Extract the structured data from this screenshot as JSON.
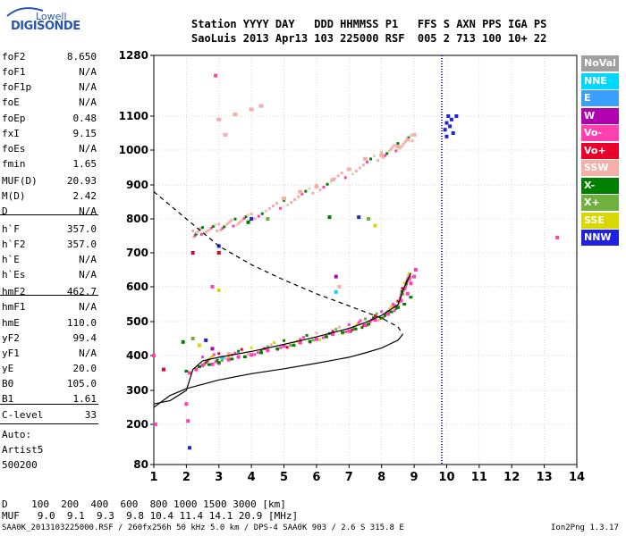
{
  "logo": {
    "top": "Lowell",
    "main": "DIGISONDE"
  },
  "header": {
    "line1": "Station YYYY DAY   DDD HHMMSS P1   FFS S AXN PPS IGA PS",
    "line2": "SaoLuis 2013 Apr13 103 225000 RSF  005 2 713 100 10+ 22"
  },
  "params": [
    {
      "k": "foF2",
      "v": "8.650"
    },
    {
      "k": "foF1",
      "v": "N/A"
    },
    {
      "k": "foF1p",
      "v": "N/A"
    },
    {
      "k": "foE",
      "v": "N/A"
    },
    {
      "k": "foEp",
      "v": "0.48"
    },
    {
      "k": "fxI",
      "v": "9.15"
    },
    {
      "k": "foEs",
      "v": "N/A"
    },
    {
      "k": "fmin",
      "v": "1.65"
    },
    {
      "k": "MUF(D)",
      "v": "20.93"
    },
    {
      "k": "M(D)",
      "v": "2.42"
    },
    {
      "k": "D",
      "v": "N/A"
    },
    {
      "k": "h`F",
      "v": "357.0"
    },
    {
      "k": "h`F2",
      "v": "357.0"
    },
    {
      "k": "h`E",
      "v": "N/A"
    },
    {
      "k": "h`Es",
      "v": "N/A"
    },
    {
      "k": "hmF2",
      "v": "462.7"
    },
    {
      "k": "hmF1",
      "v": "N/A"
    },
    {
      "k": "hmE",
      "v": "110.0"
    },
    {
      "k": "yF2",
      "v": "99.4"
    },
    {
      "k": "yF1",
      "v": "N/A"
    },
    {
      "k": "yE",
      "v": "20.0"
    },
    {
      "k": "B0",
      "v": "105.0"
    },
    {
      "k": "B1",
      "v": "1.61"
    },
    {
      "k": "C-level",
      "v": "33"
    }
  ],
  "auto": {
    "label": "Auto:",
    "artist": "Artist5",
    "code": "500200"
  },
  "legend": [
    {
      "label": "NoVal",
      "color": "#a0a0a0"
    },
    {
      "label": "NNE",
      "color": "#00d8ff"
    },
    {
      "label": "E",
      "color": "#3aa0ff"
    },
    {
      "label": "W",
      "color": "#b000b0"
    },
    {
      "label": "Vo-",
      "color": "#ff40b0"
    },
    {
      "label": "Vo+",
      "color": "#e8002a"
    },
    {
      "label": "SSW",
      "color": "#f4b0a8"
    },
    {
      "label": "X-",
      "color": "#008000"
    },
    {
      "label": "X+",
      "color": "#70b040"
    },
    {
      "label": "SSE",
      "color": "#d8d800"
    },
    {
      "label": "NNW",
      "color": "#2020e0"
    }
  ],
  "bottom": {
    "d_line": "D    100  200  400  600  800 1000 1500 3000 [km]",
    "muf_line": "MUF   9.0  9.1  9.3  9.8 10.4 11.4 14.1 20.9 [MHz]"
  },
  "footer": {
    "left": "SAA0K_2013103225000.RSF / 260fx256h 50 kHz 5.0 km / DPS-4 SAA0K 903 / 2.6 S 315.8 E",
    "right": "Ion2Png 1.3.17"
  },
  "chart_data": {
    "type": "scatter",
    "xlim": [
      1,
      14
    ],
    "ylim": [
      80,
      1280
    ],
    "x_ticks": [
      1,
      2,
      3,
      4,
      5,
      6,
      7,
      8,
      9,
      10,
      11,
      12,
      13,
      14
    ],
    "y_ticks": [
      80,
      200,
      300,
      400,
      500,
      600,
      700,
      800,
      900,
      1000,
      1100,
      1280
    ],
    "marker_freq_mhz": 9.85,
    "profile_curve": [
      [
        1.0,
        250
      ],
      [
        1.5,
        285
      ],
      [
        2.0,
        305
      ],
      [
        3.0,
        330
      ],
      [
        4.0,
        348
      ],
      [
        5.0,
        362
      ],
      [
        6.0,
        378
      ],
      [
        7.0,
        395
      ],
      [
        7.5,
        408
      ],
      [
        8.0,
        422
      ],
      [
        8.5,
        445
      ],
      [
        8.65,
        462
      ]
    ],
    "muf_curve": [
      [
        1.0,
        880
      ],
      [
        1.5,
        840
      ],
      [
        2.0,
        800
      ],
      [
        2.5,
        760
      ],
      [
        3.0,
        720
      ],
      [
        4.0,
        665
      ],
      [
        5.0,
        620
      ],
      [
        6.0,
        580
      ],
      [
        7.0,
        545
      ],
      [
        8.0,
        510
      ],
      [
        8.5,
        485
      ],
      [
        8.65,
        462
      ]
    ],
    "ordinary_trace": [
      [
        1.0,
        260
      ],
      [
        1.5,
        270
      ],
      [
        2.0,
        300
      ],
      [
        2.2,
        360
      ],
      [
        2.5,
        385
      ],
      [
        3.0,
        395
      ],
      [
        4.0,
        412
      ],
      [
        5.0,
        433
      ],
      [
        6.0,
        455
      ],
      [
        7.0,
        480
      ],
      [
        7.5,
        497
      ],
      [
        8.0,
        518
      ],
      [
        8.5,
        548
      ],
      [
        8.7,
        600
      ],
      [
        8.9,
        640
      ]
    ],
    "oblique_trace": [
      [
        2.2,
        755
      ],
      [
        2.5,
        765
      ],
      [
        3.0,
        775
      ],
      [
        3.5,
        790
      ],
      [
        4.0,
        805
      ],
      [
        5.0,
        845
      ],
      [
        6.0,
        890
      ],
      [
        7.0,
        935
      ],
      [
        8.0,
        985
      ],
      [
        8.5,
        1010
      ],
      [
        9.0,
        1040
      ]
    ],
    "o_echoes": [
      [
        1.0,
        400
      ],
      [
        1.05,
        200
      ],
      [
        2.0,
        260
      ],
      [
        2.05,
        210
      ],
      [
        2.1,
        350
      ],
      [
        2.3,
        360
      ],
      [
        2.5,
        372
      ],
      [
        2.8,
        375
      ],
      [
        3.0,
        378
      ],
      [
        3.3,
        388
      ],
      [
        3.6,
        396
      ],
      [
        4.0,
        402
      ],
      [
        4.5,
        415
      ],
      [
        5.0,
        428
      ],
      [
        5.5,
        438
      ],
      [
        6.0,
        448
      ],
      [
        6.5,
        463
      ],
      [
        7.0,
        472
      ],
      [
        7.5,
        489
      ],
      [
        7.8,
        505
      ],
      [
        8.2,
        522
      ],
      [
        8.4,
        545
      ],
      [
        8.6,
        560
      ],
      [
        8.8,
        580
      ],
      [
        8.9,
        610
      ],
      [
        9.0,
        630
      ],
      [
        9.05,
        650
      ]
    ],
    "x_echoes": [
      [
        2.0,
        355
      ],
      [
        2.4,
        368
      ],
      [
        2.7,
        374
      ],
      [
        3.0,
        380
      ],
      [
        3.4,
        390
      ],
      [
        3.8,
        396
      ],
      [
        4.3,
        408
      ],
      [
        4.8,
        420
      ],
      [
        5.3,
        430
      ],
      [
        5.8,
        442
      ],
      [
        6.3,
        455
      ],
      [
        6.8,
        468
      ],
      [
        7.2,
        478
      ],
      [
        7.6,
        492
      ],
      [
        8.0,
        510
      ],
      [
        8.3,
        528
      ],
      [
        8.5,
        540
      ],
      [
        8.7,
        550
      ],
      [
        8.9,
        570
      ]
    ],
    "ssw_echoes": [
      [
        3.0,
        1090
      ],
      [
        3.5,
        1105
      ],
      [
        4.0,
        1120
      ],
      [
        4.3,
        1130
      ],
      [
        5.0,
        860
      ],
      [
        5.5,
        880
      ],
      [
        6.0,
        895
      ],
      [
        6.5,
        915
      ],
      [
        7.0,
        945
      ],
      [
        7.5,
        975
      ],
      [
        8.0,
        985
      ],
      [
        8.5,
        1010
      ],
      [
        8.8,
        1030
      ],
      [
        9.0,
        1045
      ],
      [
        3.2,
        1045
      ]
    ],
    "nnw_echoes": [
      [
        9.95,
        1060
      ],
      [
        10.0,
        1080
      ],
      [
        10.05,
        1100
      ],
      [
        10.1,
        1070
      ],
      [
        10.15,
        1090
      ],
      [
        10.2,
        1050
      ],
      [
        10.3,
        1100
      ],
      [
        10.0,
        1040
      ],
      [
        3.0,
        720
      ],
      [
        4.0,
        800
      ],
      [
        2.1,
        130
      ]
    ],
    "scattered_echoes": [
      [
        2.9,
        1220
      ],
      [
        1.3,
        360
      ],
      [
        1.9,
        440
      ],
      [
        2.2,
        450
      ],
      [
        2.4,
        430
      ],
      [
        2.6,
        445
      ],
      [
        2.8,
        420
      ],
      [
        3.1,
        395
      ],
      [
        3.3,
        405
      ],
      [
        2.8,
        600
      ],
      [
        3.0,
        700
      ],
      [
        6.4,
        805
      ],
      [
        7.6,
        800
      ],
      [
        7.8,
        780
      ],
      [
        7.3,
        805
      ],
      [
        6.6,
        630
      ],
      [
        6.6,
        585
      ],
      [
        6.7,
        600
      ],
      [
        13.4,
        745
      ],
      [
        2.2,
        700
      ],
      [
        3.9,
        790
      ],
      [
        4.5,
        800
      ],
      [
        3.0,
        590
      ]
    ]
  }
}
